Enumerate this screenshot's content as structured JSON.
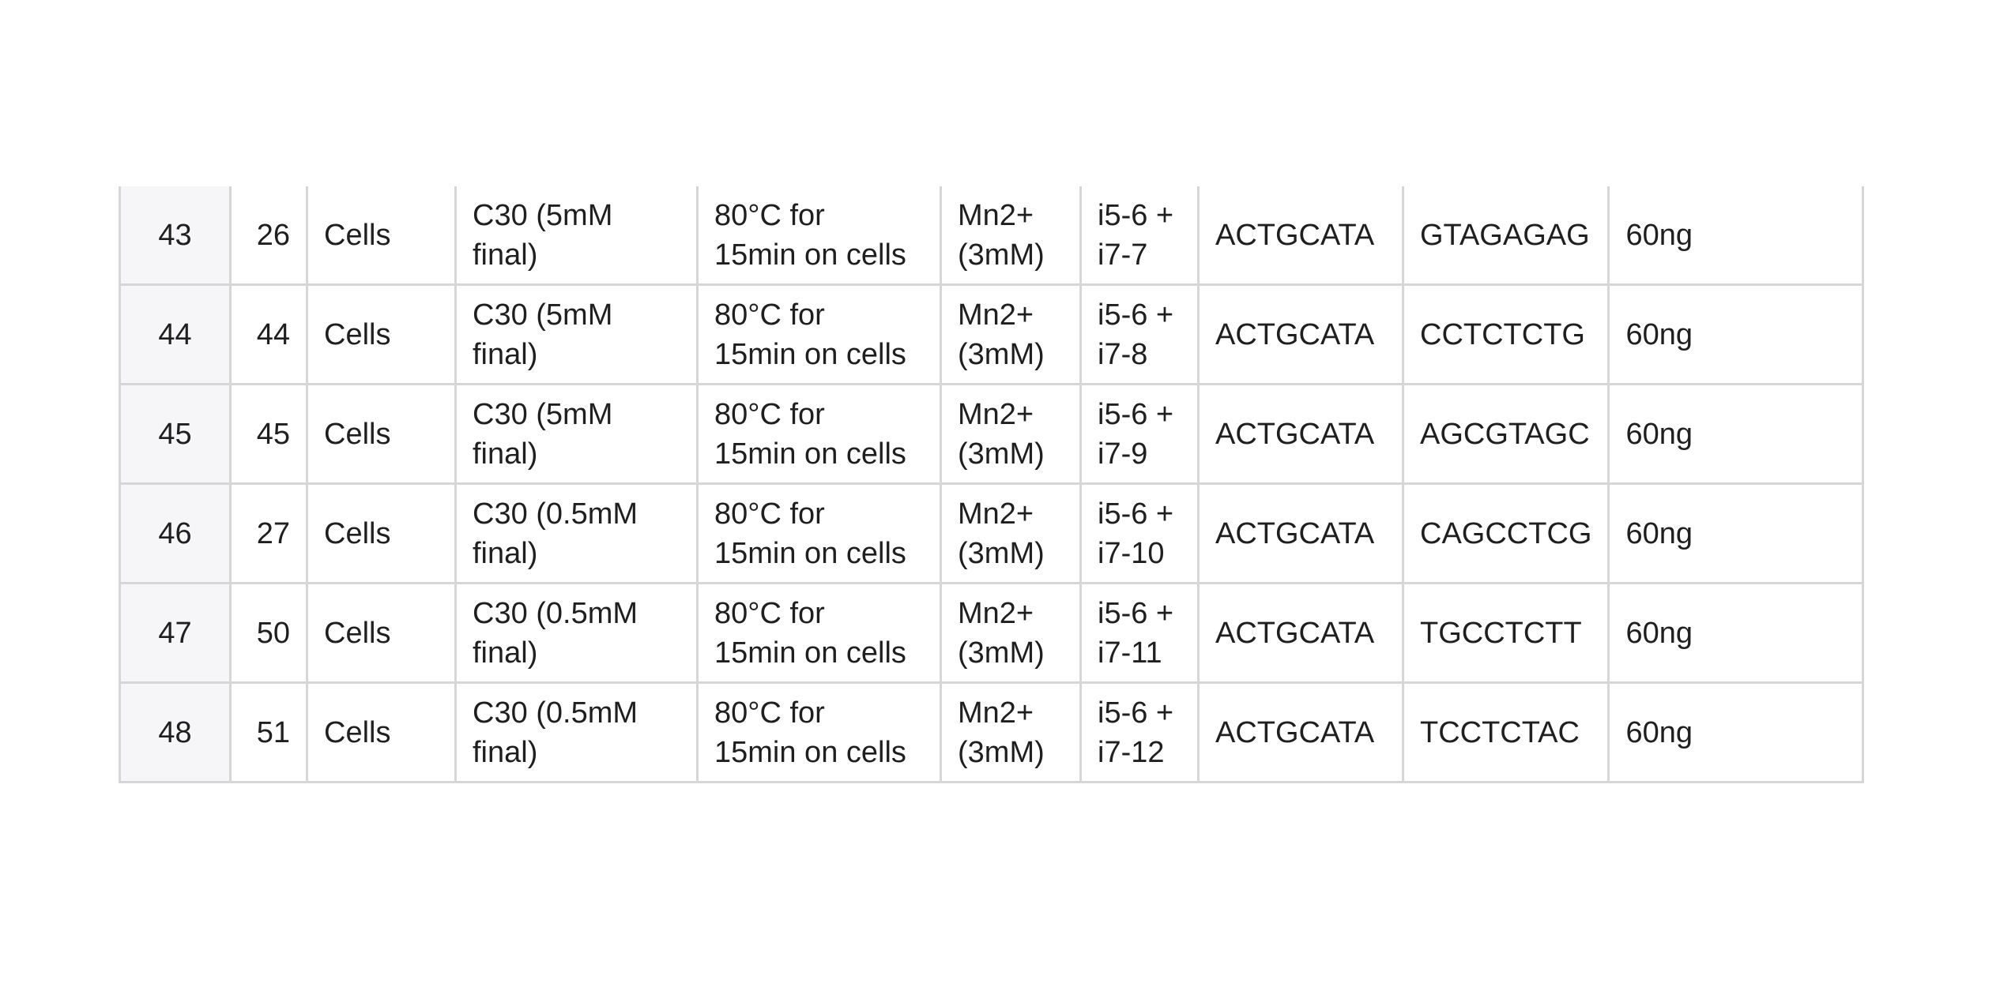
{
  "table": {
    "rows": [
      {
        "header": "43",
        "id": "26",
        "sample": "Cells",
        "additive": [
          "C30 (5mM",
          "final)"
        ],
        "treatment": [
          "80°C for",
          "15min on cells"
        ],
        "cation": [
          "Mn2+",
          "(3mM)"
        ],
        "index": [
          "i5-6 +",
          "i7-7"
        ],
        "i5_seq": "ACTGCATA",
        "i7_seq": "GTAGAGAG",
        "amount": "60ng"
      },
      {
        "header": "44",
        "id": "44",
        "sample": "Cells",
        "additive": [
          "C30 (5mM",
          "final)"
        ],
        "treatment": [
          "80°C for",
          "15min on cells"
        ],
        "cation": [
          "Mn2+",
          "(3mM)"
        ],
        "index": [
          "i5-6 +",
          "i7-8"
        ],
        "i5_seq": "ACTGCATA",
        "i7_seq": "CCTCTCTG",
        "amount": "60ng"
      },
      {
        "header": "45",
        "id": "45",
        "sample": "Cells",
        "additive": [
          "C30 (5mM",
          "final)"
        ],
        "treatment": [
          "80°C for",
          "15min on cells"
        ],
        "cation": [
          "Mn2+",
          "(3mM)"
        ],
        "index": [
          "i5-6 +",
          "i7-9"
        ],
        "i5_seq": "ACTGCATA",
        "i7_seq": "AGCGTAGC",
        "amount": "60ng"
      },
      {
        "header": "46",
        "id": "27",
        "sample": "Cells",
        "additive": [
          "C30 (0.5mM",
          "final)"
        ],
        "treatment": [
          "80°C for",
          "15min on cells"
        ],
        "cation": [
          "Mn2+",
          "(3mM)"
        ],
        "index": [
          "i5-6 +",
          "i7-10"
        ],
        "i5_seq": "ACTGCATA",
        "i7_seq": "CAGCCTCG",
        "amount": "60ng"
      },
      {
        "header": "47",
        "id": "50",
        "sample": "Cells",
        "additive": [
          "C30 (0.5mM",
          "final)"
        ],
        "treatment": [
          "80°C for",
          "15min on cells"
        ],
        "cation": [
          "Mn2+",
          "(3mM)"
        ],
        "index": [
          "i5-6 +",
          "i7-11"
        ],
        "i5_seq": "ACTGCATA",
        "i7_seq": "TGCCTCTT",
        "amount": "60ng"
      },
      {
        "header": "48",
        "id": "51",
        "sample": "Cells",
        "additive": [
          "C30 (0.5mM",
          "final)"
        ],
        "treatment": [
          "80°C for",
          "15min on cells"
        ],
        "cation": [
          "Mn2+",
          "(3mM)"
        ],
        "index": [
          "i5-6 +",
          "i7-12"
        ],
        "i5_seq": "ACTGCATA",
        "i7_seq": "TCCTCTAC",
        "amount": "60ng"
      }
    ]
  },
  "colors": {
    "grid_border": "#d6d6d6",
    "row_header_bg": "#f6f6f8",
    "text": "#1f1f1f"
  }
}
